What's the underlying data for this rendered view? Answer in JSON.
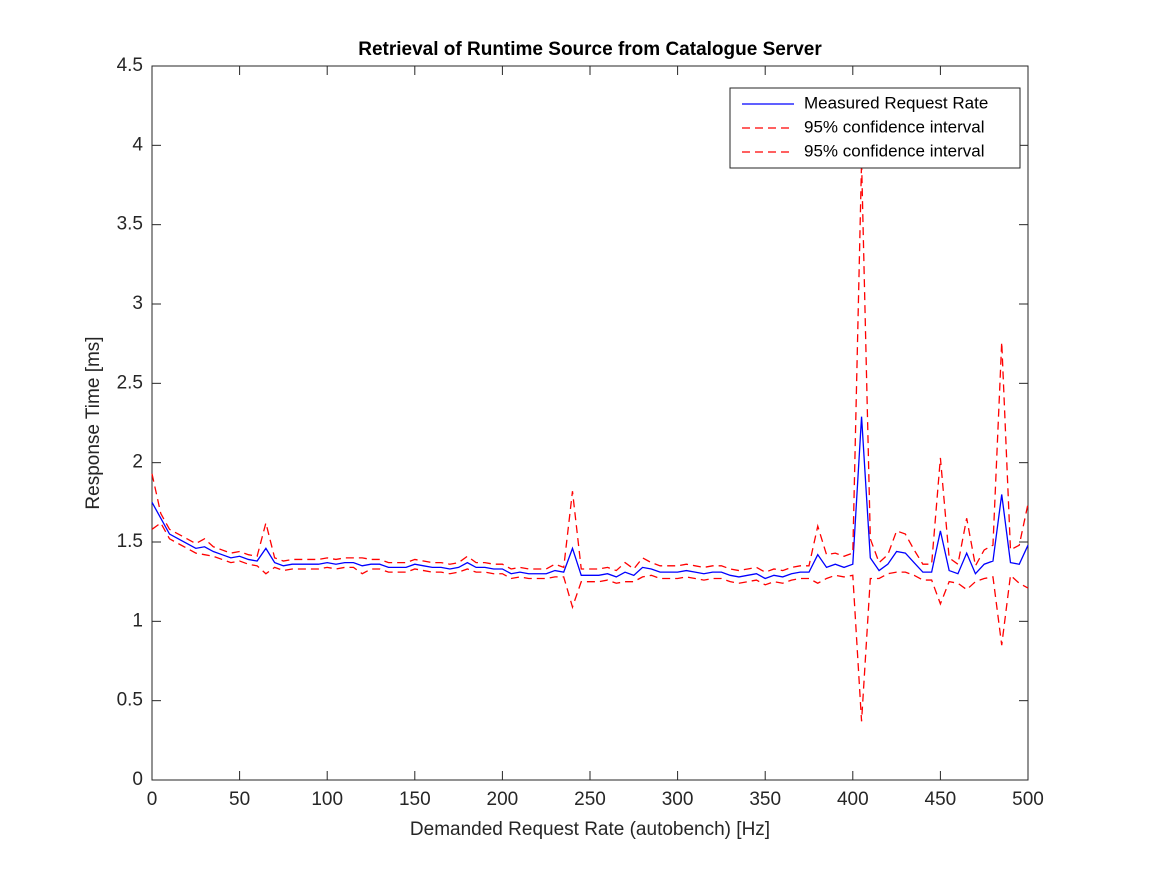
{
  "chart_data": {
    "type": "line",
    "title": "Retrieval of Runtime Source from Catalogue Server",
    "x_label": "Demanded Request Rate (autobench) [Hz]",
    "y_label": "Response Time [ms]",
    "x": [
      0,
      5,
      10,
      15,
      20,
      25,
      30,
      35,
      40,
      45,
      50,
      55,
      60,
      65,
      70,
      75,
      80,
      85,
      90,
      95,
      100,
      105,
      110,
      115,
      120,
      125,
      130,
      135,
      140,
      145,
      150,
      155,
      160,
      165,
      170,
      175,
      180,
      185,
      190,
      195,
      200,
      205,
      210,
      215,
      220,
      225,
      230,
      235,
      240,
      245,
      250,
      255,
      260,
      265,
      270,
      275,
      280,
      285,
      290,
      295,
      300,
      305,
      310,
      315,
      320,
      325,
      330,
      335,
      340,
      345,
      350,
      355,
      360,
      365,
      370,
      375,
      380,
      385,
      390,
      395,
      400,
      405,
      410,
      415,
      420,
      425,
      430,
      435,
      440,
      445,
      450,
      455,
      460,
      465,
      470,
      475,
      480,
      485,
      490,
      495,
      500
    ],
    "series": [
      {
        "name": "Measured Request Rate",
        "color": "#0000ff",
        "style": "solid",
        "values": [
          1.75,
          1.65,
          1.55,
          1.52,
          1.49,
          1.46,
          1.47,
          1.44,
          1.42,
          1.4,
          1.41,
          1.39,
          1.38,
          1.46,
          1.37,
          1.35,
          1.36,
          1.36,
          1.36,
          1.36,
          1.37,
          1.36,
          1.37,
          1.37,
          1.35,
          1.36,
          1.36,
          1.34,
          1.34,
          1.34,
          1.36,
          1.35,
          1.34,
          1.34,
          1.33,
          1.34,
          1.37,
          1.34,
          1.34,
          1.33,
          1.33,
          1.3,
          1.31,
          1.3,
          1.3,
          1.3,
          1.32,
          1.31,
          1.46,
          1.29,
          1.29,
          1.29,
          1.3,
          1.28,
          1.31,
          1.29,
          1.34,
          1.33,
          1.31,
          1.31,
          1.31,
          1.32,
          1.31,
          1.3,
          1.31,
          1.31,
          1.29,
          1.28,
          1.29,
          1.3,
          1.27,
          1.29,
          1.28,
          1.3,
          1.31,
          1.31,
          1.42,
          1.34,
          1.36,
          1.34,
          1.36,
          2.29,
          1.4,
          1.32,
          1.36,
          1.44,
          1.43,
          1.37,
          1.31,
          1.31,
          1.57,
          1.32,
          1.3,
          1.43,
          1.3,
          1.36,
          1.38,
          1.8,
          1.37,
          1.36,
          1.48
        ]
      },
      {
        "name": "95% confidence interval",
        "color": "#ff0000",
        "style": "dashed",
        "values": [
          1.93,
          1.68,
          1.58,
          1.55,
          1.52,
          1.49,
          1.52,
          1.47,
          1.45,
          1.43,
          1.44,
          1.42,
          1.41,
          1.62,
          1.4,
          1.38,
          1.39,
          1.39,
          1.39,
          1.39,
          1.4,
          1.39,
          1.4,
          1.4,
          1.4,
          1.39,
          1.39,
          1.37,
          1.37,
          1.37,
          1.39,
          1.38,
          1.37,
          1.37,
          1.36,
          1.37,
          1.41,
          1.37,
          1.37,
          1.36,
          1.36,
          1.33,
          1.34,
          1.33,
          1.33,
          1.33,
          1.36,
          1.34,
          1.82,
          1.33,
          1.33,
          1.33,
          1.34,
          1.32,
          1.37,
          1.33,
          1.4,
          1.37,
          1.35,
          1.35,
          1.35,
          1.36,
          1.35,
          1.34,
          1.35,
          1.35,
          1.33,
          1.32,
          1.33,
          1.34,
          1.31,
          1.33,
          1.32,
          1.34,
          1.35,
          1.35,
          1.6,
          1.42,
          1.43,
          1.41,
          1.43,
          3.9,
          1.52,
          1.37,
          1.42,
          1.57,
          1.55,
          1.45,
          1.36,
          1.36,
          2.03,
          1.4,
          1.36,
          1.65,
          1.35,
          1.45,
          1.48,
          2.76,
          1.45,
          1.48,
          1.74
        ]
      },
      {
        "name": "95% confidence interval",
        "color": "#ff0000",
        "style": "dashed",
        "values": [
          1.58,
          1.62,
          1.52,
          1.49,
          1.46,
          1.43,
          1.42,
          1.41,
          1.39,
          1.37,
          1.38,
          1.36,
          1.35,
          1.3,
          1.34,
          1.32,
          1.33,
          1.33,
          1.33,
          1.33,
          1.34,
          1.33,
          1.34,
          1.34,
          1.3,
          1.33,
          1.33,
          1.31,
          1.31,
          1.31,
          1.33,
          1.32,
          1.31,
          1.31,
          1.3,
          1.31,
          1.33,
          1.31,
          1.31,
          1.3,
          1.3,
          1.27,
          1.28,
          1.27,
          1.27,
          1.27,
          1.28,
          1.28,
          1.09,
          1.25,
          1.25,
          1.25,
          1.26,
          1.24,
          1.25,
          1.25,
          1.28,
          1.29,
          1.27,
          1.27,
          1.27,
          1.28,
          1.27,
          1.26,
          1.27,
          1.27,
          1.25,
          1.24,
          1.25,
          1.26,
          1.23,
          1.25,
          1.24,
          1.26,
          1.27,
          1.27,
          1.24,
          1.27,
          1.29,
          1.28,
          1.29,
          0.37,
          1.27,
          1.27,
          1.3,
          1.31,
          1.31,
          1.29,
          1.26,
          1.26,
          1.11,
          1.25,
          1.24,
          1.2,
          1.25,
          1.27,
          1.28,
          0.85,
          1.29,
          1.24,
          1.21
        ]
      }
    ],
    "xlim": [
      0,
      500
    ],
    "xticks": [
      0,
      50,
      100,
      150,
      200,
      250,
      300,
      350,
      400,
      450,
      500
    ],
    "ylim": [
      0,
      4.5
    ],
    "yticks": [
      0,
      0.5,
      1,
      1.5,
      2,
      2.5,
      3,
      3.5,
      4,
      4.5
    ],
    "legend": "upper right",
    "grid": false
  }
}
